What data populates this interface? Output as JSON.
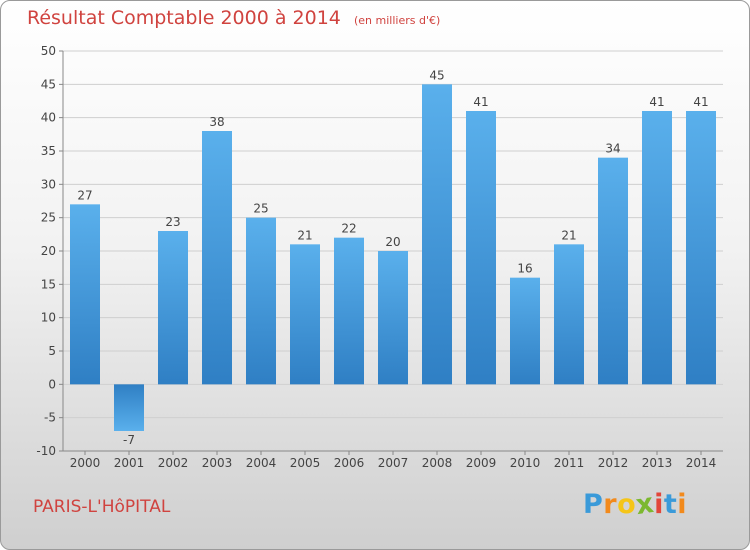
{
  "chart_data": {
    "type": "bar",
    "title": "Résultat Comptable 2000 à 2014",
    "subtitle": "(en milliers d'€)",
    "categories": [
      "2000",
      "2001",
      "2002",
      "2003",
      "2004",
      "2005",
      "2006",
      "2007",
      "2008",
      "2009",
      "2010",
      "2011",
      "2012",
      "2013",
      "2014"
    ],
    "values": [
      27,
      -7,
      23,
      38,
      25,
      21,
      22,
      20,
      45,
      41,
      16,
      21,
      34,
      41,
      41
    ],
    "ylim": [
      -10,
      50
    ],
    "yticks": [
      -10,
      -5,
      0,
      5,
      10,
      15,
      20,
      25,
      30,
      35,
      40,
      45,
      50
    ],
    "xlabel": "",
    "ylabel": "",
    "grid": true,
    "bar_color": "#4a9fe0"
  },
  "place_name": "PARIS-L'HôPITAL",
  "logo": {
    "letters": [
      "P",
      "r",
      "o",
      "x",
      "i",
      "t",
      "i"
    ],
    "colors": [
      "#3a9ad9",
      "#f28a1c",
      "#f5c518",
      "#7cb82f",
      "#e2463a",
      "#3a9ad9",
      "#f28a1c"
    ]
  }
}
